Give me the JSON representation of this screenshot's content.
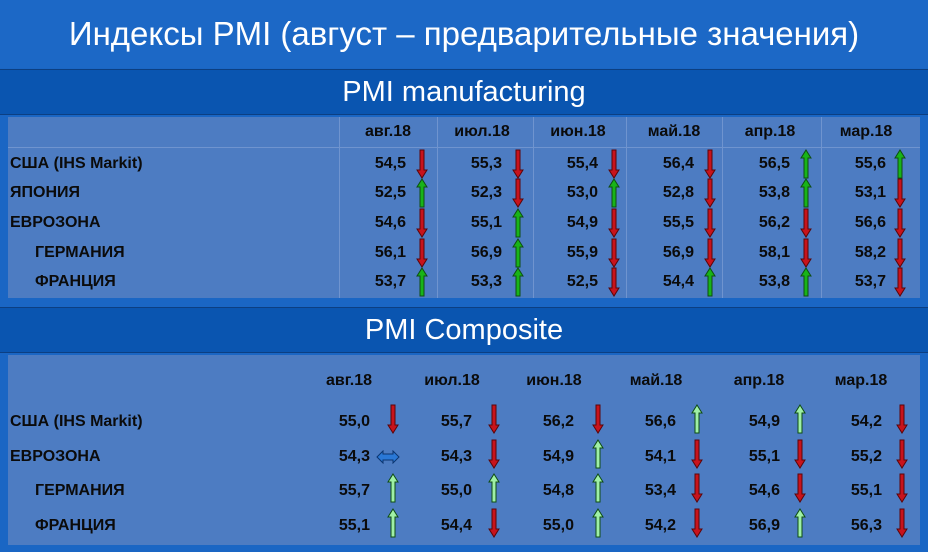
{
  "title": "Индексы PMI (август – предварительные значения)",
  "manufacturing": {
    "heading": "PMI manufacturing",
    "months": [
      "авг.18",
      "июл.18",
      "июн.18",
      "май.18",
      "апр.18",
      "мар.18"
    ],
    "rows": [
      {
        "label": "США (IHS Markit)",
        "indent": false,
        "values": [
          "54,5",
          "55,3",
          "55,4",
          "56,4",
          "56,5",
          "55,6"
        ],
        "arrows": [
          "down",
          "down",
          "down",
          "down",
          "up",
          "up"
        ]
      },
      {
        "label": "ЯПОНИЯ",
        "indent": false,
        "values": [
          "52,5",
          "52,3",
          "53,0",
          "52,8",
          "53,8",
          "53,1"
        ],
        "arrows": [
          "up",
          "down",
          "up",
          "down",
          "up",
          "down"
        ]
      },
      {
        "label": "ЕВРОЗОНА",
        "indent": false,
        "values": [
          "54,6",
          "55,1",
          "54,9",
          "55,5",
          "56,2",
          "56,6"
        ],
        "arrows": [
          "down",
          "up",
          "down",
          "down",
          "down",
          "down"
        ]
      },
      {
        "label": "ГЕРМАНИЯ",
        "indent": true,
        "values": [
          "56,1",
          "56,9",
          "55,9",
          "56,9",
          "58,1",
          "58,2"
        ],
        "arrows": [
          "down",
          "up",
          "down",
          "down",
          "down",
          "down"
        ]
      },
      {
        "label": "ФРАНЦИЯ",
        "indent": true,
        "values": [
          "53,7",
          "53,3",
          "52,5",
          "54,4",
          "53,8",
          "53,7"
        ],
        "arrows": [
          "up",
          "up",
          "down",
          "up",
          "up",
          "down"
        ]
      }
    ]
  },
  "composite": {
    "heading": "PMI Composite",
    "months": [
      "авг.18",
      "июл.18",
      "июн.18",
      "май.18",
      "апр.18",
      "мар.18"
    ],
    "rows": [
      {
        "label": "США (IHS Markit)",
        "indent": false,
        "values": [
          "55,0",
          "55,7",
          "56,2",
          "56,6",
          "54,9",
          "54,2"
        ],
        "arrows": [
          "down",
          "down",
          "down",
          "up",
          "up",
          "down"
        ]
      },
      {
        "label": "ЕВРОЗОНА",
        "indent": false,
        "values": [
          "54,3",
          "54,3",
          "54,9",
          "54,1",
          "55,1",
          "55,2"
        ],
        "arrows": [
          "flat",
          "down",
          "up",
          "down",
          "down",
          "down"
        ]
      },
      {
        "label": "ГЕРМАНИЯ",
        "indent": true,
        "values": [
          "55,7",
          "55,0",
          "54,8",
          "53,4",
          "54,6",
          "55,1"
        ],
        "arrows": [
          "up",
          "up",
          "up",
          "down",
          "down",
          "down"
        ]
      },
      {
        "label": "ФРАНЦИЯ",
        "indent": true,
        "values": [
          "55,1",
          "54,4",
          "55,0",
          "54,2",
          "56,9",
          "56,3"
        ],
        "arrows": [
          "up",
          "down",
          "up",
          "down",
          "up",
          "down"
        ]
      }
    ]
  },
  "colors": {
    "up_bright": "#18b418",
    "up_pale": "#9ff0a6",
    "down": "#c8131c",
    "flat": "#2a78d6"
  }
}
